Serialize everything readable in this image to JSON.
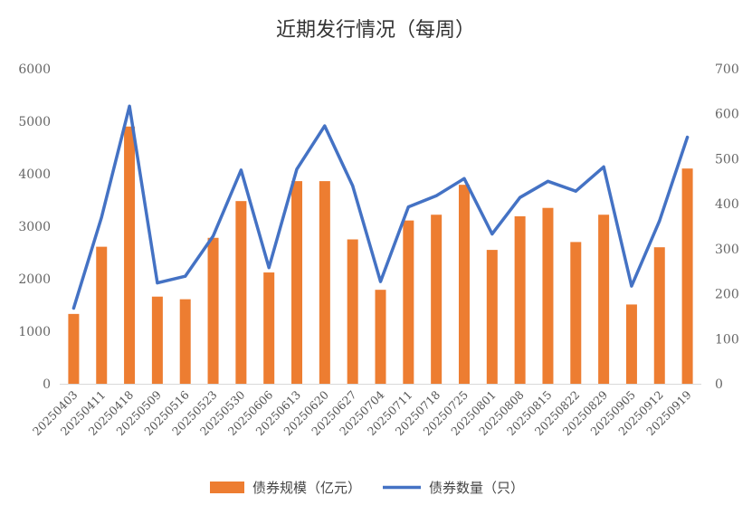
{
  "chart_data": {
    "type": "bar",
    "title": "近期发行情况（每周）",
    "categories": [
      "20250403",
      "20250411",
      "20250418",
      "20250509",
      "20250516",
      "20250523",
      "20250530",
      "20250606",
      "20250613",
      "20250620",
      "20250627",
      "20250704",
      "20250711",
      "20250718",
      "20250725",
      "20250801",
      "20250808",
      "20250815",
      "20250822",
      "20250829",
      "20250905",
      "20250912",
      "20250919"
    ],
    "series": [
      {
        "name": "债券规模（亿元）",
        "type": "bar",
        "axis": "left",
        "color": "#ED7D31",
        "values": [
          1330,
          2610,
          4900,
          1660,
          1610,
          2780,
          3480,
          2120,
          3860,
          3860,
          2750,
          1790,
          3110,
          3220,
          3790,
          2550,
          3190,
          3350,
          2700,
          3220,
          1510,
          2600,
          4100
        ]
      },
      {
        "name": "债券数量（只）",
        "type": "line",
        "axis": "right",
        "color": "#4472C4",
        "values": [
          168,
          370,
          617,
          224,
          239,
          328,
          475,
          258,
          477,
          573,
          440,
          227,
          393,
          418,
          456,
          333,
          414,
          450,
          428,
          482,
          217,
          362,
          548
        ]
      }
    ],
    "y_left": {
      "min": 0,
      "max": 6000,
      "ticks": [
        "0",
        "1000",
        "2000",
        "3000",
        "4000",
        "5000",
        "6000"
      ]
    },
    "y_right": {
      "min": 0,
      "max": 700,
      "ticks": [
        "0",
        "100",
        "200",
        "300",
        "400",
        "500",
        "600",
        "700"
      ]
    },
    "grid": false,
    "legend_position": "bottom"
  }
}
